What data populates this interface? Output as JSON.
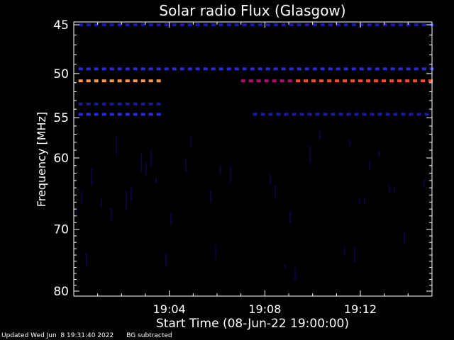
{
  "chart_data": {
    "type": "heatmap",
    "title": "Solar radio Flux (Glasgow)",
    "xlabel": "Start Time (08-Jun-22 19:00:00)",
    "ylabel": "Frequency [MHz]",
    "x_unit": "minutes after 19:00",
    "xlim": [
      0,
      15
    ],
    "ylim": [
      45,
      80
    ],
    "x_ticks": [
      {
        "value": 4,
        "label": "19:04"
      },
      {
        "value": 8,
        "label": "19:08"
      },
      {
        "value": 12,
        "label": "19:12"
      }
    ],
    "y_ticks": [
      {
        "value": 45,
        "label": "45"
      },
      {
        "value": 50,
        "label": "50"
      },
      {
        "value": 55,
        "label": "55"
      },
      {
        "value": 60,
        "label": "60"
      },
      {
        "value": 70,
        "label": "70"
      },
      {
        "value": 80,
        "label": "80"
      }
    ],
    "features": [
      {
        "kind": "dashed-line",
        "freq": 45.0,
        "t_start": 0.2,
        "t_end": 15,
        "color": "#1a1ab0"
      },
      {
        "kind": "dashed-line",
        "freq": 49.5,
        "t_start": 0.2,
        "t_end": 15,
        "color": "#2a2ad8"
      },
      {
        "kind": "dashed-line",
        "freq": 50.8,
        "t_start": 0.2,
        "t_end": 3.7,
        "color": "#ff9a55"
      },
      {
        "kind": "dashed-line",
        "freq": 50.8,
        "t_start": 7.0,
        "t_end": 9.3,
        "color": "#b01070"
      },
      {
        "kind": "dashed-line",
        "freq": 50.8,
        "t_start": 9.3,
        "t_end": 15,
        "color": "#ff5030"
      },
      {
        "kind": "dashed-line",
        "freq": 53.4,
        "t_start": 0.2,
        "t_end": 3.7,
        "color": "#1a1a90"
      },
      {
        "kind": "dashed-line",
        "freq": 54.6,
        "t_start": 0.2,
        "t_end": 3.7,
        "color": "#2a2ad8"
      },
      {
        "kind": "dashed-line",
        "freq": 54.6,
        "t_start": 7.5,
        "t_end": 15,
        "color": "#1a1aa0"
      }
    ]
  },
  "footer": {
    "updated": "Updated Wed Jun  8 19:31:40 2022",
    "note": "BG subtracted"
  }
}
